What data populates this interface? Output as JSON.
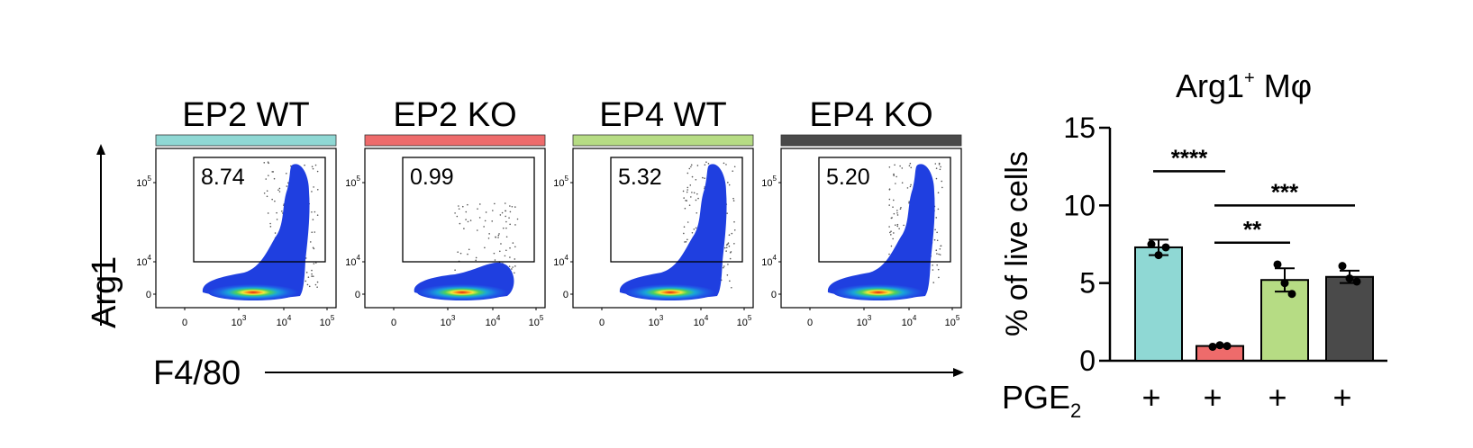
{
  "flow": {
    "y_axis_label": "Arg1",
    "x_axis_label": "F4/80",
    "x_ticks": [
      {
        "base": "0",
        "exp": ""
      },
      {
        "base": "10",
        "exp": "3"
      },
      {
        "base": "10",
        "exp": "4"
      },
      {
        "base": "10",
        "exp": "5"
      }
    ],
    "y_ticks": [
      {
        "base": "0",
        "exp": ""
      },
      {
        "base": "10",
        "exp": "4"
      },
      {
        "base": "10",
        "exp": "5"
      }
    ],
    "panels": [
      {
        "title": "EP2 WT",
        "color": "#8fd8d4",
        "gate_value": "8.74"
      },
      {
        "title": "EP2 KO",
        "color": "#ee6b6b",
        "gate_value": "0.99"
      },
      {
        "title": "EP4 WT",
        "color": "#b6dc84",
        "gate_value": "5.32"
      },
      {
        "title": "EP4 KO",
        "color": "#4a4a4a",
        "gate_value": "5.20"
      }
    ]
  },
  "chart_data": {
    "type": "bar",
    "title": "Arg1+ Mφ",
    "title_main": "Arg1",
    "title_sup": "+",
    "title_tail": " Mφ",
    "ylabel": "% of live cells",
    "ylim": [
      0,
      15
    ],
    "yticks": [
      "0",
      "5",
      "10",
      "15"
    ],
    "x_row_label": "PGE",
    "x_row_label_sub": "2",
    "x_row_values": [
      "+",
      "+",
      "+",
      "+"
    ],
    "bars": [
      {
        "color": "#8fd8d4",
        "value": 7.3,
        "sem": 0.5,
        "points": [
          7.5,
          6.8,
          7.3
        ]
      },
      {
        "color": "#ee6b6b",
        "value": 0.95,
        "sem": 0.05,
        "points": [
          0.9,
          1.0,
          0.95
        ]
      },
      {
        "color": "#b6dc84",
        "value": 5.2,
        "sem": 0.75,
        "points": [
          6.2,
          5.0,
          4.3
        ]
      },
      {
        "color": "#4a4a4a",
        "value": 5.4,
        "sem": 0.4,
        "points": [
          6.1,
          5.3,
          5.1
        ]
      }
    ],
    "significance": [
      {
        "from": 0,
        "to": 1,
        "label": "****",
        "y": 12.2
      },
      {
        "from": 1,
        "to": 3,
        "label": "***",
        "y": 10.0
      },
      {
        "from": 1,
        "to": 2,
        "label": "**",
        "y": 7.6
      }
    ]
  }
}
